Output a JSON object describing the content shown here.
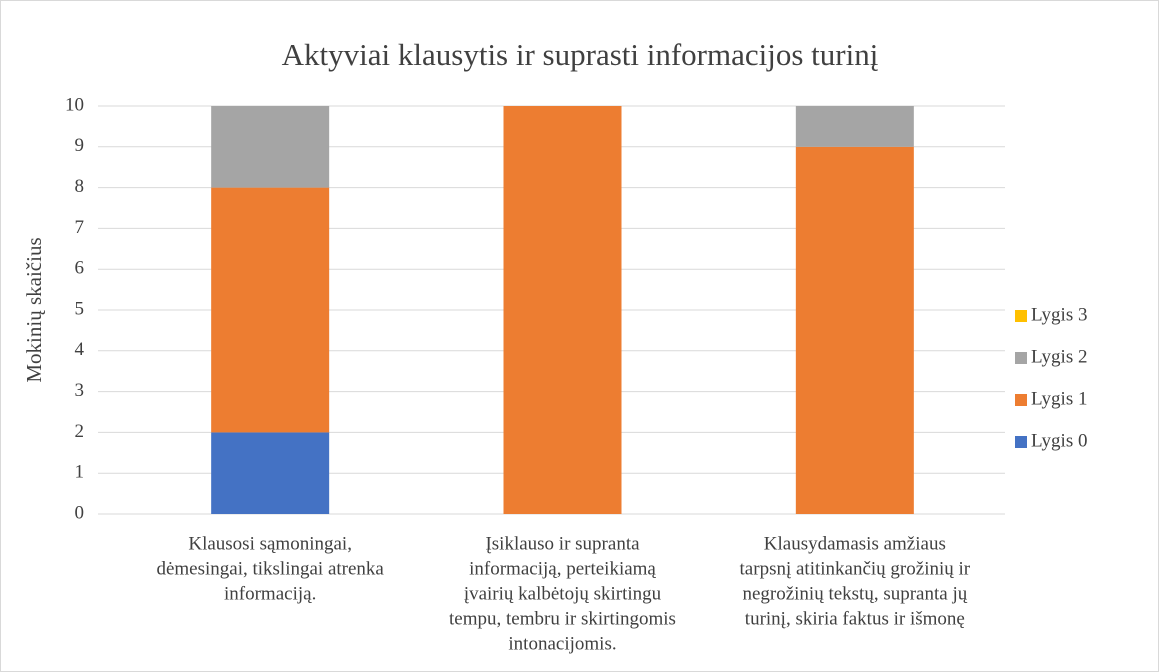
{
  "chart_data": {
    "type": "stacked_bar",
    "title": "Aktyviai klausytis ir suprasti informacijos turinį",
    "y_label": "Mokinių skaičius",
    "categories": [
      [
        "Klausosi sąmoningai,",
        "dėmesingai, tikslingai atrenka",
        "informaciją."
      ],
      [
        "Įsiklauso ir supranta",
        "informaciją, perteikiamą",
        "įvairių kalbėtojų skirtingu",
        "tempu, tembru ir skirtingomis",
        "intonacijomis."
      ],
      [
        "Klausydamasis amžiaus",
        "tarpsnį atitinkančių grožinių ir",
        "negrožinių tekstų, supranta jų",
        "turinį, skiria faktus ir išmonę"
      ]
    ],
    "series": [
      {
        "name": "Lygis 0",
        "color": "#4472c4",
        "values": [
          2,
          0,
          0
        ]
      },
      {
        "name": "Lygis 1",
        "color": "#ed7d31",
        "values": [
          6,
          10,
          9
        ]
      },
      {
        "name": "Lygis 2",
        "color": "#a5a5a5",
        "values": [
          2,
          0,
          1
        ]
      },
      {
        "name": "Lygis 3",
        "color": "#ffc000",
        "values": [
          0,
          0,
          0
        ]
      }
    ],
    "ylim": [
      0,
      10
    ],
    "yticks": [
      0,
      1,
      2,
      3,
      4,
      5,
      6,
      7,
      8,
      9,
      10
    ],
    "grid": true,
    "legend": "right"
  }
}
